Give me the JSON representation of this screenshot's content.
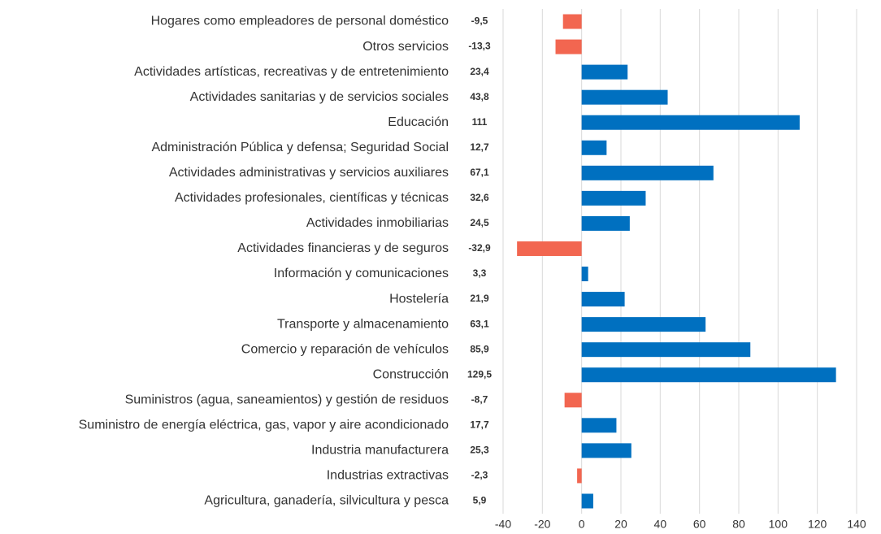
{
  "chart_data": {
    "type": "barh",
    "categories": [
      "Hogares como empleadores de personal doméstico",
      "Otros servicios",
      "Actividades artísticas, recreativas y de entretenimiento",
      "Actividades sanitarias y de servicios sociales",
      "Educación",
      "Administración Pública y defensa; Seguridad Social",
      "Actividades administrativas y servicios auxiliares",
      "Actividades profesionales, científicas y técnicas",
      "Actividades inmobiliarias",
      "Actividades financieras y de seguros",
      "Información y comunicaciones",
      "Hostelería",
      "Transporte y almacenamiento",
      "Comercio y reparación de vehículos",
      "Construcción",
      "Suministros (agua, saneamientos) y gestión de residuos",
      "Suministro de energía eléctrica, gas, vapor y aire acondicionado",
      "Industria manufacturera",
      "Industrias extractivas",
      "Agricultura, ganadería, silvicultura y pesca"
    ],
    "values": [
      -9.5,
      -13.3,
      23.4,
      43.8,
      111,
      12.7,
      67.1,
      32.6,
      24.5,
      -32.9,
      3.3,
      21.9,
      63.1,
      85.9,
      129.5,
      -8.7,
      17.7,
      25.3,
      -2.3,
      5.9
    ],
    "value_labels": [
      "-9,5",
      "-13,3",
      "23,4",
      "43,8",
      "111",
      "12,7",
      "67,1",
      "32,6",
      "24,5",
      "-32,9",
      "3,3",
      "21,9",
      "63,1",
      "85,9",
      "129,5",
      "-8,7",
      "17,7",
      "25,3",
      "-2,3",
      "5,9"
    ],
    "color": "#0070c0",
    "negative_color": "#f26650",
    "xlim": [
      -40,
      140
    ],
    "xticks": [
      -40,
      -20,
      0,
      20,
      40,
      60,
      80,
      100,
      120,
      140
    ],
    "grid": true
  }
}
